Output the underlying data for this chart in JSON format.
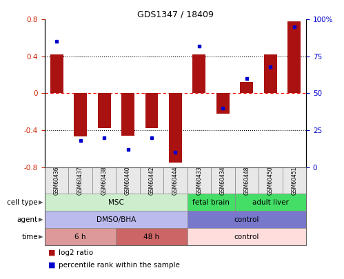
{
  "title": "GDS1347 / 18409",
  "samples": [
    "GSM60436",
    "GSM60437",
    "GSM60438",
    "GSM60440",
    "GSM60442",
    "GSM60444",
    "GSM60433",
    "GSM60434",
    "GSM60448",
    "GSM60450",
    "GSM60451"
  ],
  "log2_ratio": [
    0.42,
    -0.47,
    -0.38,
    -0.46,
    -0.38,
    -0.75,
    0.42,
    -0.22,
    0.12,
    0.42,
    0.78
  ],
  "pct_rank": [
    85,
    18,
    20,
    12,
    20,
    10,
    82,
    40,
    60,
    68,
    95
  ],
  "bar_color": "#aa1111",
  "dot_color": "#0000cc",
  "ylim": [
    -0.8,
    0.8
  ],
  "yticks_left": [
    -0.8,
    -0.4,
    0.0,
    0.4,
    0.8
  ],
  "yticks_right": [
    0,
    25,
    50,
    75,
    100
  ],
  "cell_type_groups": [
    {
      "label": "MSC",
      "start": 0,
      "end": 6,
      "color": "#cceecc"
    },
    {
      "label": "fetal brain",
      "start": 6,
      "end": 8,
      "color": "#44dd66"
    },
    {
      "label": "adult liver",
      "start": 8,
      "end": 11,
      "color": "#44dd66"
    }
  ],
  "agent_groups": [
    {
      "label": "DMSO/BHA",
      "start": 0,
      "end": 6,
      "color": "#bbbbee"
    },
    {
      "label": "control",
      "start": 6,
      "end": 11,
      "color": "#7777cc"
    }
  ],
  "time_groups": [
    {
      "label": "6 h",
      "start": 0,
      "end": 3,
      "color": "#dd9999"
    },
    {
      "label": "48 h",
      "start": 3,
      "end": 6,
      "color": "#cc6666"
    },
    {
      "label": "control",
      "start": 6,
      "end": 11,
      "color": "#ffdddd"
    }
  ],
  "row_labels": [
    "cell type",
    "agent",
    "time"
  ],
  "legend_labels": [
    "log2 ratio",
    "percentile rank within the sample"
  ],
  "legend_colors": [
    "#aa1111",
    "#0000cc"
  ]
}
